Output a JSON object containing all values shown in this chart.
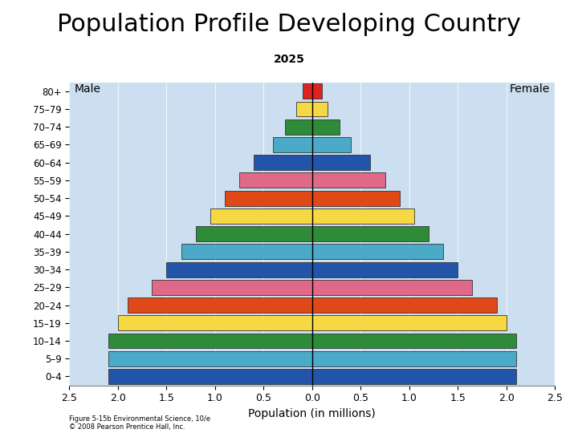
{
  "title": "Population Profile Developing Country",
  "subtitle": "2025",
  "xlabel": "Population (in millions)",
  "label_male": "Male",
  "label_female": "Female",
  "age_groups": [
    "0–4",
    "5–9",
    "10–14",
    "15–19",
    "20–24",
    "25–29",
    "30–34",
    "35–39",
    "40–44",
    "45–49",
    "50–54",
    "55–59",
    "60–64",
    "65–69",
    "70–74",
    "75–79",
    "80+"
  ],
  "male_values": [
    2.1,
    2.1,
    2.1,
    2.0,
    1.9,
    1.65,
    1.5,
    1.35,
    1.2,
    1.05,
    0.9,
    0.75,
    0.6,
    0.4,
    0.28,
    0.16,
    0.1
  ],
  "female_values": [
    2.1,
    2.1,
    2.1,
    2.0,
    1.9,
    1.65,
    1.5,
    1.35,
    1.2,
    1.05,
    0.9,
    0.75,
    0.6,
    0.4,
    0.28,
    0.16,
    0.1
  ],
  "colors": [
    "#2255AA",
    "#4AAAC8",
    "#2E8B38",
    "#F5D842",
    "#E04818",
    "#E06888",
    "#2255AA",
    "#4AAAC8",
    "#2E8B38",
    "#F5D842",
    "#E04818",
    "#E06888",
    "#2255AA",
    "#4AAAC8",
    "#2E8B38",
    "#F5D842",
    "#DD2222"
  ],
  "xlim": 2.5,
  "bar_height": 0.85,
  "bg_color": "#CCDFF0",
  "grid_color": "#B8D4E8",
  "footnote": "Figure 5-15b Environmental Science, 10/e\n© 2008 Pearson Prentice Hall, Inc."
}
